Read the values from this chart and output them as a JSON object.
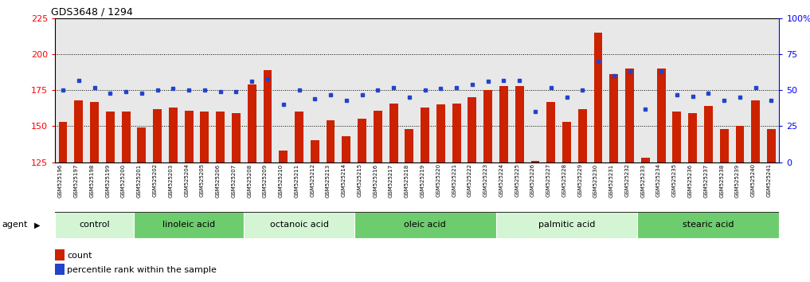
{
  "title": "GDS3648 / 1294",
  "samples": [
    "GSM525196",
    "GSM525197",
    "GSM525198",
    "GSM525199",
    "GSM525200",
    "GSM525201",
    "GSM525202",
    "GSM525203",
    "GSM525204",
    "GSM525205",
    "GSM525206",
    "GSM525207",
    "GSM525208",
    "GSM525209",
    "GSM525210",
    "GSM525211",
    "GSM525212",
    "GSM525213",
    "GSM525214",
    "GSM525215",
    "GSM525216",
    "GSM525217",
    "GSM525218",
    "GSM525219",
    "GSM525220",
    "GSM525221",
    "GSM525222",
    "GSM525223",
    "GSM525224",
    "GSM525225",
    "GSM525226",
    "GSM525227",
    "GSM525228",
    "GSM525229",
    "GSM525230",
    "GSM525231",
    "GSM525232",
    "GSM525233",
    "GSM525234",
    "GSM525235",
    "GSM525236",
    "GSM525237",
    "GSM525238",
    "GSM525239",
    "GSM525240",
    "GSM525241"
  ],
  "counts": [
    153,
    168,
    167,
    160,
    160,
    149,
    162,
    163,
    161,
    160,
    160,
    159,
    179,
    189,
    133,
    160,
    140,
    154,
    143,
    155,
    161,
    166,
    148,
    163,
    165,
    166,
    170,
    175,
    178,
    178,
    126,
    167,
    153,
    162,
    215,
    186,
    190,
    128,
    190,
    160,
    159,
    164,
    148,
    150,
    168,
    148
  ],
  "percentile_ranks": [
    50,
    57,
    52,
    48,
    49,
    48,
    50,
    51,
    50,
    50,
    49,
    49,
    56,
    58,
    40,
    50,
    44,
    47,
    43,
    47,
    50,
    52,
    45,
    50,
    51,
    52,
    54,
    56,
    57,
    57,
    35,
    52,
    45,
    50,
    70,
    60,
    63,
    37,
    63,
    47,
    46,
    48,
    43,
    45,
    52,
    43
  ],
  "groups": [
    {
      "label": "control",
      "start": 0,
      "end": 5
    },
    {
      "label": "linoleic acid",
      "start": 5,
      "end": 12
    },
    {
      "label": "octanoic acid",
      "start": 12,
      "end": 19
    },
    {
      "label": "oleic acid",
      "start": 19,
      "end": 28
    },
    {
      "label": "palmitic acid",
      "start": 28,
      "end": 37
    },
    {
      "label": "stearic acid",
      "start": 37,
      "end": 46
    }
  ],
  "group_colors": [
    "#d4f5d4",
    "#6dcc6d"
  ],
  "ylim_left": [
    125,
    225
  ],
  "yticks_left": [
    125,
    150,
    175,
    200,
    225
  ],
  "ylim_right": [
    0,
    100
  ],
  "yticks_right": [
    0,
    25,
    50,
    75,
    100
  ],
  "ytick_labels_right": [
    "0",
    "25",
    "50",
    "75",
    "100%"
  ],
  "bar_color": "#cc2200",
  "blue_color": "#2244cc",
  "bg_color": "#e8e8e8",
  "tick_bg_color": "#d8d8d8",
  "grid_lines": [
    150,
    175,
    200
  ]
}
